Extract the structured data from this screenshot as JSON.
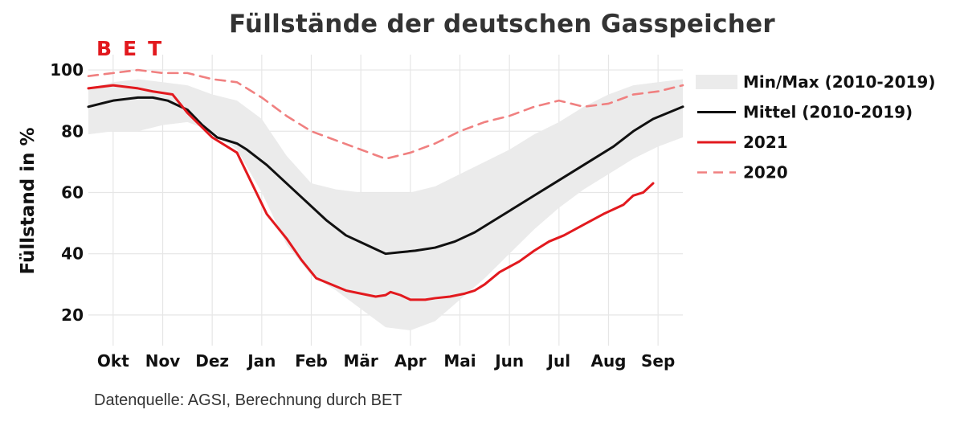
{
  "title": "Füllstände der deutschen Gasspeicher",
  "logo": "BET",
  "source_note": "Datenquelle: AGSI, Berechnung durch BET",
  "colors": {
    "band": "#ebebeb",
    "mean": "#111111",
    "y2021": "#e2191e",
    "y2020": "#f08080",
    "grid": "#e6e6e6",
    "text": "#111111"
  },
  "chart_data": {
    "type": "line",
    "title": "Füllstände der deutschen Gasspeicher",
    "xlabel": "",
    "ylabel": "Füllstand in %",
    "x_tick_labels": [
      "Okt",
      "Nov",
      "Dez",
      "Jan",
      "Feb",
      "Mär",
      "Apr",
      "Mai",
      "Jun",
      "Jul",
      "Aug",
      "Sep"
    ],
    "x_unit": "months since 1 Oct",
    "xlim": [
      0,
      12
    ],
    "ylim": [
      10,
      105
    ],
    "y_ticks": [
      20,
      40,
      60,
      80,
      100
    ],
    "grid": true,
    "legend_position": "right",
    "legend": [
      "Min/Max (2010-2019)",
      "Mittel (2010-2019)",
      "2021",
      "2020"
    ],
    "band": {
      "name": "Min/Max (2010-2019)",
      "x": [
        0,
        0.5,
        1,
        1.5,
        2,
        2.5,
        3,
        3.5,
        4,
        4.5,
        5,
        5.5,
        6,
        6.5,
        7,
        7.5,
        8,
        8.5,
        9,
        9.5,
        10,
        10.5,
        11,
        11.5,
        12
      ],
      "min": [
        79,
        80,
        80,
        82,
        83,
        80,
        74,
        60,
        43,
        33,
        28,
        22,
        16,
        15,
        18,
        25,
        32,
        40,
        48,
        55,
        61,
        66,
        71,
        75,
        78
      ],
      "max": [
        94,
        96,
        97,
        96,
        95,
        92,
        90,
        84,
        72,
        63,
        61,
        60,
        60,
        60,
        62,
        66,
        70,
        74,
        79,
        83,
        88,
        92,
        95,
        96,
        97
      ]
    },
    "series": [
      {
        "name": "Mittel (2010-2019)",
        "style": "solid",
        "x": [
          0,
          0.5,
          1,
          1.3,
          1.6,
          2,
          2.3,
          2.6,
          3,
          3.2,
          3.6,
          4,
          4.4,
          4.8,
          5.2,
          5.6,
          5.8,
          6,
          6.3,
          6.6,
          7,
          7.4,
          7.8,
          8.2,
          8.6,
          9,
          9.4,
          9.8,
          10.2,
          10.6,
          11,
          11.4,
          12
        ],
        "y": [
          88,
          90,
          91,
          91,
          90,
          87,
          82,
          78,
          76,
          74,
          69,
          63,
          57,
          51,
          46,
          43,
          41.5,
          40,
          40.5,
          41,
          42,
          44,
          47,
          51,
          55,
          59,
          63,
          67,
          71,
          75,
          80,
          84,
          88
        ]
      },
      {
        "name": "2021",
        "style": "solid",
        "x": [
          0,
          0.5,
          1,
          1.3,
          1.7,
          2,
          2.5,
          3,
          3.3,
          3.6,
          4,
          4.3,
          4.6,
          4.9,
          5.2,
          5.5,
          5.8,
          6,
          6.1,
          6.3,
          6.5,
          6.8,
          7,
          7.3,
          7.6,
          7.8,
          8,
          8.3,
          8.7,
          9,
          9.3,
          9.6,
          10,
          10.4,
          10.8,
          11,
          11.2,
          11.4
        ],
        "y": [
          94,
          95,
          94,
          93,
          92,
          86,
          78,
          73,
          63,
          53,
          45,
          38,
          32,
          30,
          28,
          27,
          26,
          26.5,
          27.5,
          26.5,
          25,
          25,
          25.5,
          26,
          27,
          28,
          30,
          34,
          37.5,
          41,
          44,
          46,
          49.5,
          53,
          56,
          59,
          60,
          63
        ]
      },
      {
        "name": "2020",
        "style": "dashed",
        "x": [
          0,
          0.5,
          1,
          1.5,
          2,
          2.5,
          3,
          3.5,
          4,
          4.5,
          5,
          5.5,
          6,
          6.5,
          7,
          7.5,
          8,
          8.5,
          9,
          9.5,
          10,
          10.5,
          11,
          11.5,
          12
        ],
        "y": [
          98,
          99,
          100,
          99,
          99,
          97,
          96,
          91,
          85,
          80,
          77,
          74,
          71,
          73,
          76,
          80,
          83,
          85,
          88,
          90,
          88,
          89,
          92,
          93,
          95
        ]
      }
    ]
  }
}
